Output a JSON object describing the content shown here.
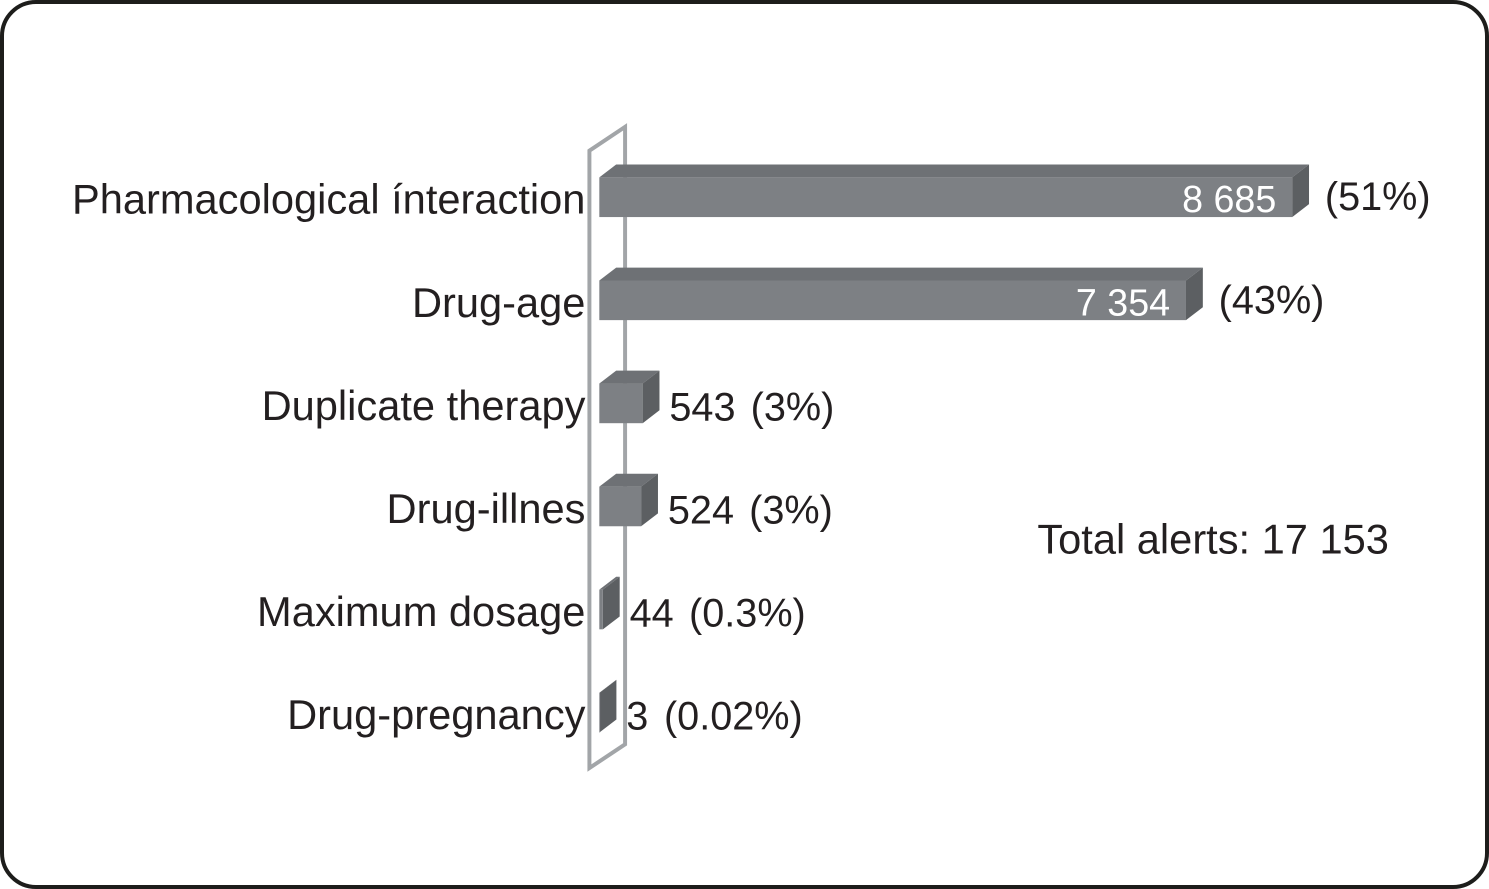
{
  "figure": {
    "background": "#ffffff",
    "border_color": "#1d1d1b"
  },
  "chart_data": {
    "type": "bar",
    "orientation": "horizontal",
    "style": "3d-pseudo",
    "title": "",
    "xlabel": "",
    "ylabel": "",
    "grid": "off",
    "legend": "none",
    "categories": [
      "Pharmacological ínteraction",
      "Drug-age",
      "Duplicate therapy",
      "Drug-illnes",
      "Maximum dosage",
      "Drug-pregnancy"
    ],
    "values": [
      8685,
      7354,
      543,
      524,
      44,
      3
    ],
    "value_labels": [
      "8 685",
      "7 354",
      "543",
      "524",
      "44",
      "3"
    ],
    "percent_labels": [
      "(51%)",
      "(43%)",
      "(3%)",
      "(3%)",
      "(0.3%)",
      "(0.02%)"
    ],
    "annotation": "Total alerts: 17 153",
    "total": 17153,
    "colors": {
      "bar_front": "#7d8084",
      "bar_top": "#6e7175",
      "bar_side": "#5c5f62",
      "axis_wall": "#a2a5a8",
      "text": "#231f20",
      "value_inside_text": "#ffffff"
    }
  }
}
